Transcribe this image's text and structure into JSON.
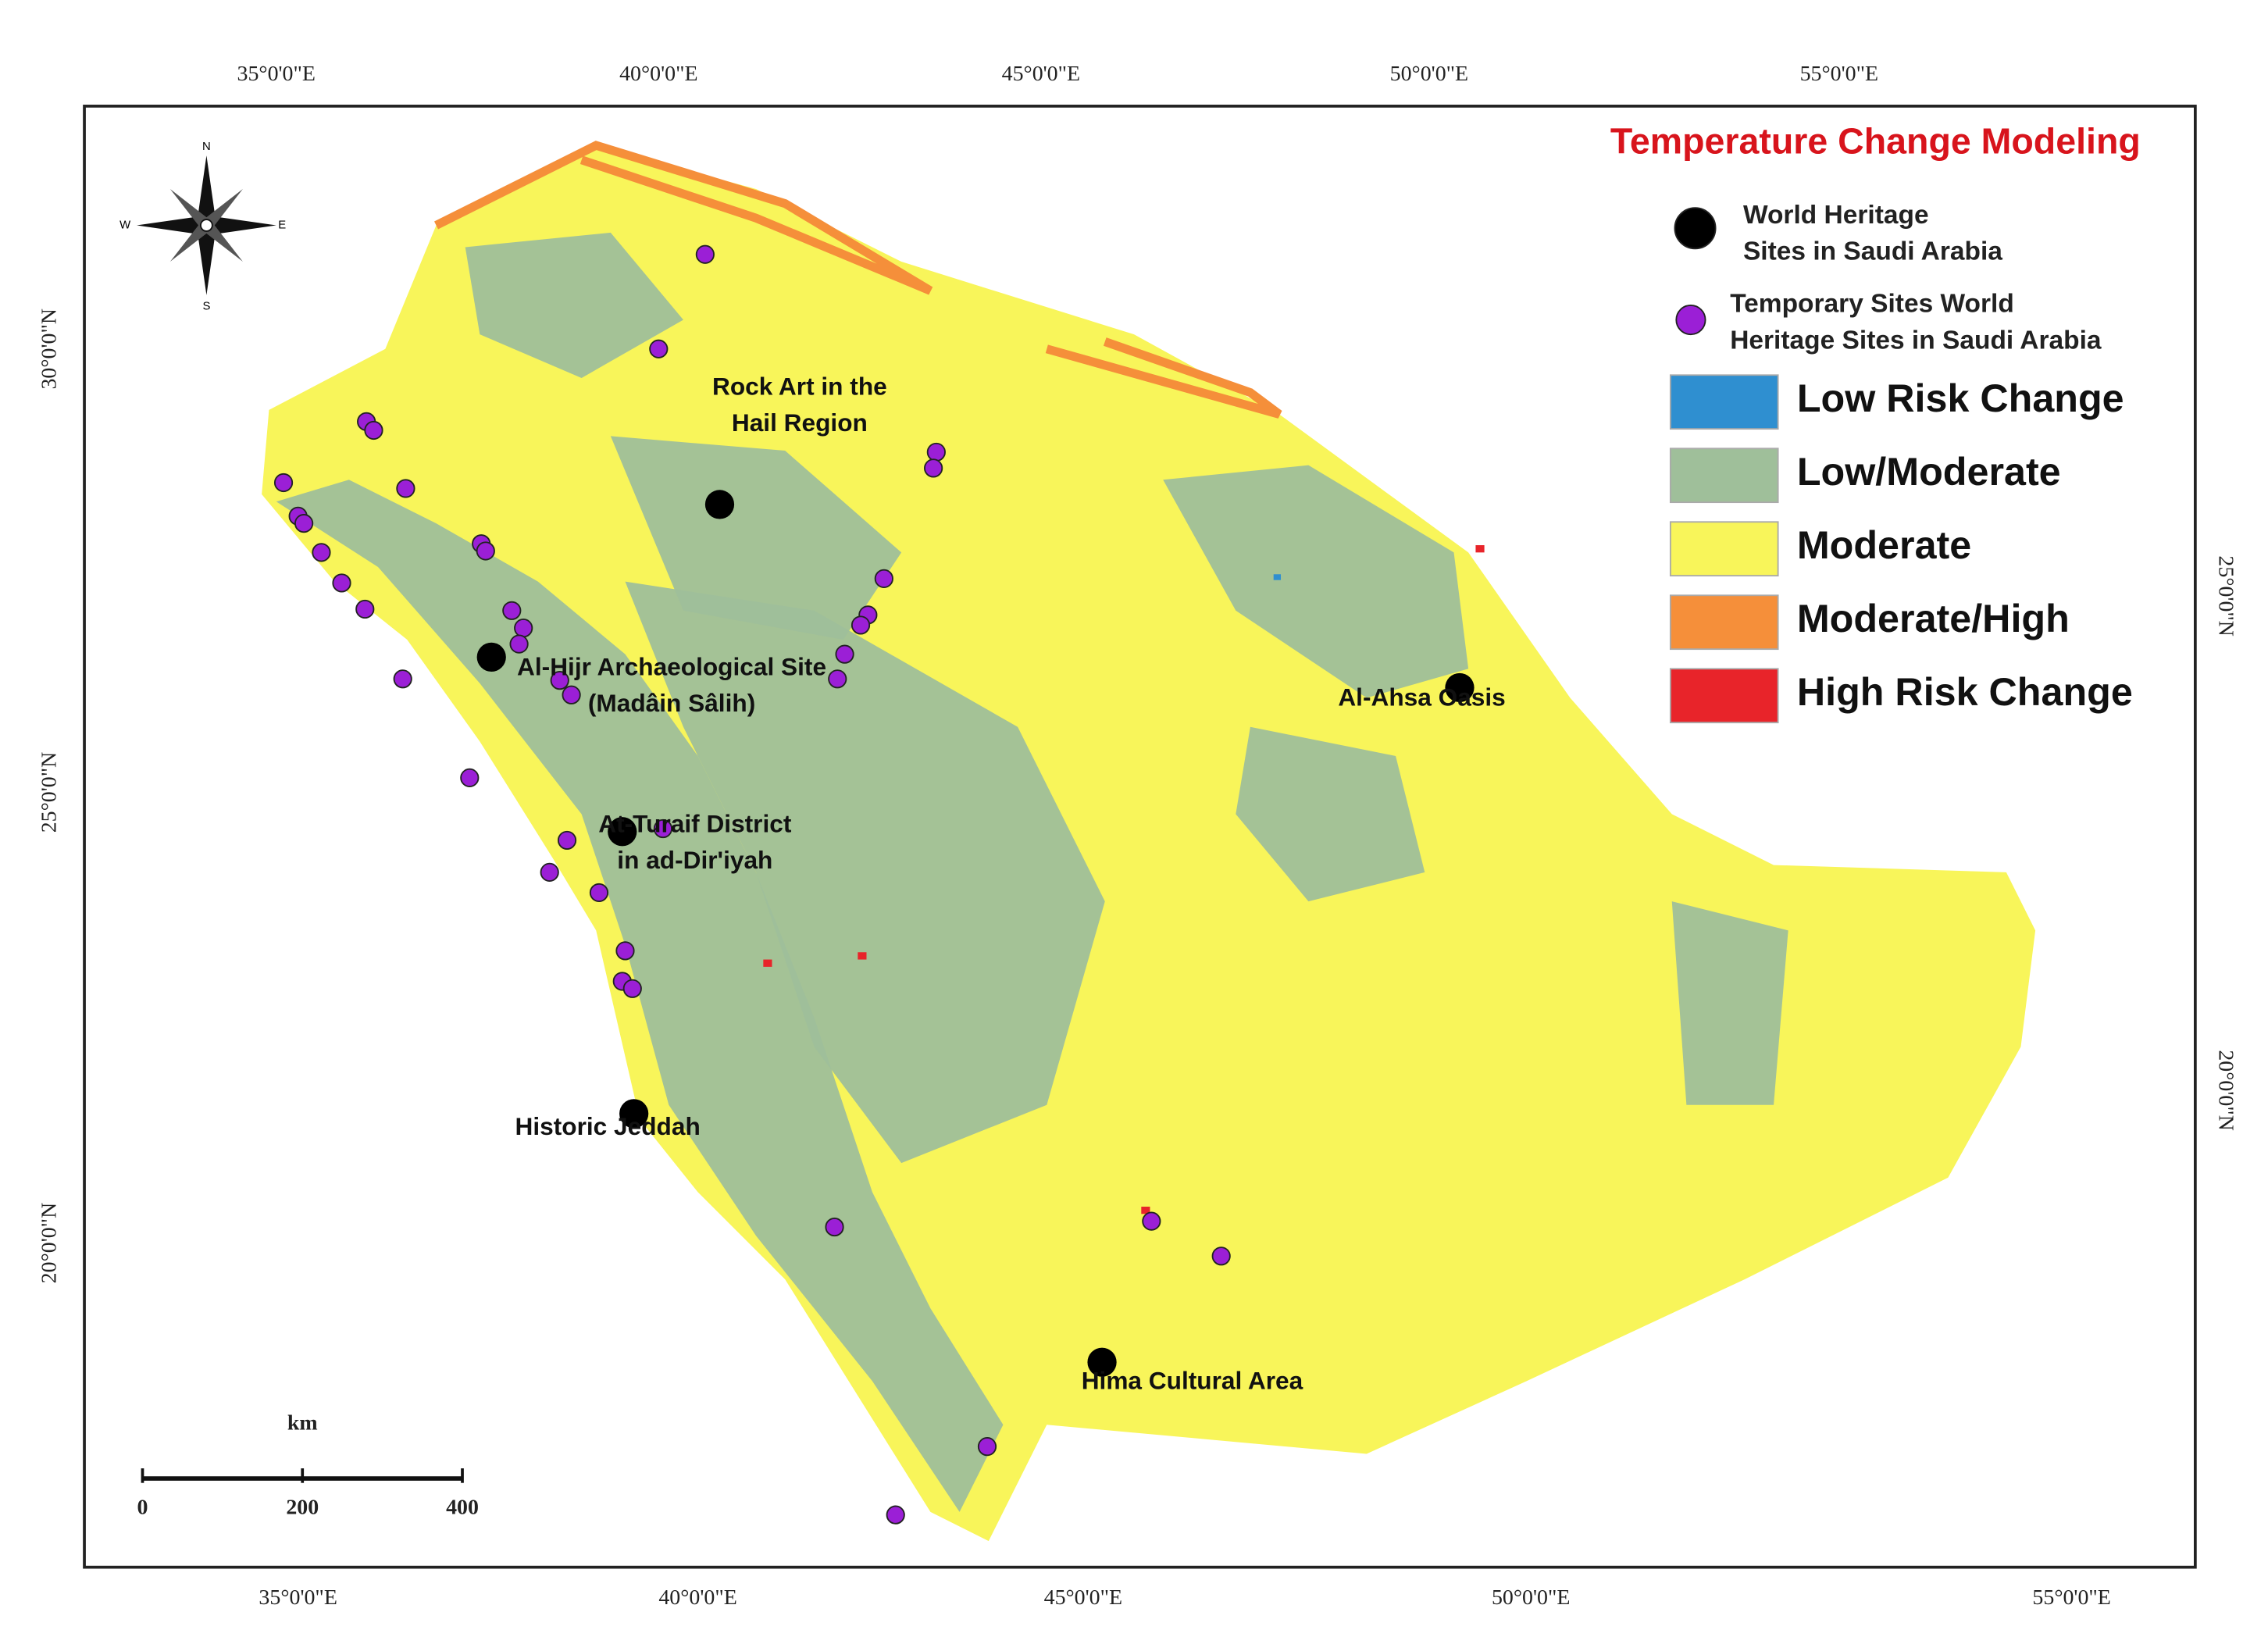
{
  "title": "Temperature Change Modeling",
  "legend": {
    "points": [
      {
        "lines": [
          "World Heritage",
          " Sites in Saudi Arabia"
        ]
      },
      {
        "lines": [
          "Temporary Sites World",
          "Heritage Sites in Saudi Arabia"
        ]
      }
    ],
    "classes": [
      {
        "label": "Low Risk Change",
        "color": "#2f8fd0"
      },
      {
        "label": "Low/Moderate",
        "color": "#9fbf9a"
      },
      {
        "label": "Moderate",
        "color": "#f8f55a"
      },
      {
        "label": "Moderate/High",
        "color": "#f58f3a"
      },
      {
        "label": "High Risk Change",
        "color": "#e8242a"
      }
    ]
  },
  "sites": [
    {
      "lines": [
        "Rock Art in the",
        "Hail Region"
      ]
    },
    {
      "lines": [
        "Al-Hijr Archaeological Site",
        "(Madâin Sâlih)"
      ]
    },
    {
      "lines": [
        "At-Turaif  District",
        "in ad-Dir'iyah"
      ]
    },
    {
      "lines": [
        "Historic Jeddah"
      ]
    },
    {
      "lines": [
        "Al-Ahsa Oasis"
      ]
    },
    {
      "lines": [
        "Hima Cultural Area"
      ]
    }
  ],
  "axes": {
    "top": [
      "35°0'0\"E",
      "40°0'0\"E",
      "45°0'0\"E",
      "50°0'0\"E",
      "55°0'0\"E"
    ],
    "bottom": [
      "35°0'0\"E",
      "40°0'0\"E",
      "45°0'0\"E",
      "50°0'0\"E",
      "55°0'0\"E"
    ],
    "left": [
      "30°0'0\"N",
      "25°0'0\"N",
      "20°0'0\"N"
    ],
    "right": [
      "25°0'0\"N",
      "20°0'0\"N"
    ]
  },
  "scale_bar": {
    "unit": "km",
    "labels": [
      "0",
      "200",
      "400"
    ]
  }
}
